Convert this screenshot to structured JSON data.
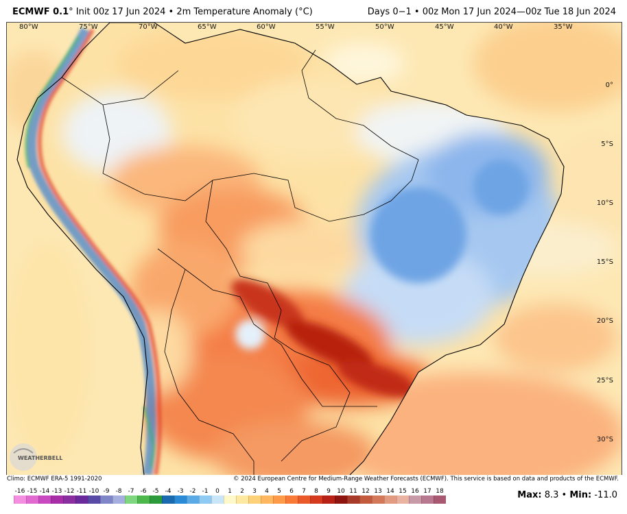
{
  "header": {
    "model": "ECMWF 0.1",
    "title_rest": "° Init 00z 17 Jun 2024 • 2m Temperature Anomaly (°C)",
    "valid": "Days 0−1 • 00z Mon 17 Jun 2024—00z Tue 18 Jun 2024"
  },
  "longitude_labels": [
    "80°W",
    "75°W",
    "70°W",
    "65°W",
    "60°W",
    "55°W",
    "50°W",
    "45°W",
    "40°W",
    "35°W"
  ],
  "latitude_labels": [
    "0°",
    "5°S",
    "10°S",
    "15°S",
    "20°S",
    "25°S",
    "30°S"
  ],
  "logo": {
    "text": "WEATHERBELL"
  },
  "footer": {
    "climo": "Climo: ECMWF ERA-5 1991-2020",
    "copyright": "© 2024 European Centre for Medium-Range Weather Forecasts (ECMWF). This service is based on data and products of the ECMWF.",
    "max_label": "Max:",
    "max_value": "8.3",
    "min_label": "Min:",
    "min_value": "-11.0",
    "separator": "•"
  },
  "colorbar": {
    "labels": [
      "-16",
      "-15",
      "-14",
      "-13",
      "-12",
      "-11",
      "-10",
      "-9",
      "-8",
      "-7",
      "-6",
      "-5",
      "-4",
      "-3",
      "-2",
      "-1",
      "0",
      "1",
      "2",
      "3",
      "4",
      "5",
      "6",
      "7",
      "8",
      "9",
      "10",
      "11",
      "12",
      "13",
      "14",
      "15",
      "16",
      "17",
      "18"
    ],
    "colors": [
      "#f48ee0",
      "#e06ad0",
      "#c94ac0",
      "#a82ea8",
      "#8a2ea0",
      "#6a2a9c",
      "#5a4aa8",
      "#7e86c8",
      "#a6aee0",
      "#7ed67e",
      "#4cb84c",
      "#2a9a3a",
      "#1a6ab0",
      "#2a8ad6",
      "#5aaae8",
      "#8ecaf2",
      "#c8e6f8",
      "#fff8c8",
      "#ffe8a0",
      "#ffd27a",
      "#ffb860",
      "#ff9a48",
      "#f87a36",
      "#ea5a28",
      "#d63a1e",
      "#b82216",
      "#8e1410",
      "#a83a2a",
      "#c25a3e",
      "#d4785a",
      "#e29a80",
      "#eab2a0",
      "#c89aa8",
      "#b87890",
      "#a85870"
    ]
  }
}
